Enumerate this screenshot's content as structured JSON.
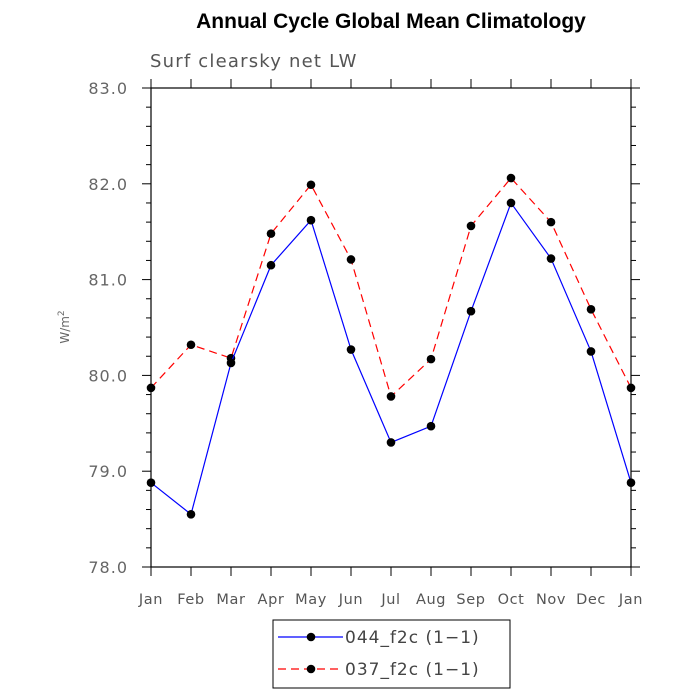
{
  "chart_data": {
    "type": "line",
    "title": "Annual Cycle Global Mean Climatology",
    "subtitle": "Surf clearsky net LW",
    "ylabel": "W/m",
    "ylabel_superscript": "2",
    "xlabel": "",
    "categories": [
      "Jan",
      "Feb",
      "Mar",
      "Apr",
      "May",
      "Jun",
      "Jul",
      "Aug",
      "Sep",
      "Oct",
      "Nov",
      "Dec",
      "Jan"
    ],
    "ylim": [
      78.0,
      83.0
    ],
    "yticks": [
      "78.0",
      "79.0",
      "80.0",
      "81.0",
      "82.0",
      "83.0"
    ],
    "series": [
      {
        "name": "044_f2c (1-1)",
        "color": "#0000ff",
        "dash": "solid",
        "values": [
          78.88,
          78.55,
          80.13,
          81.15,
          81.62,
          80.27,
          79.3,
          79.47,
          80.67,
          81.8,
          81.22,
          80.25,
          78.88
        ]
      },
      {
        "name": "037_f2c (1-1)",
        "color": "#ff0000",
        "dash": "dashed",
        "values": [
          79.87,
          80.32,
          80.18,
          81.48,
          81.99,
          81.21,
          79.78,
          80.17,
          81.56,
          82.06,
          81.6,
          80.69,
          79.87
        ]
      }
    ],
    "legend": {
      "position": "bottom",
      "entries": [
        "044_f2c (1−1)",
        "037_f2c (1−1)"
      ]
    }
  }
}
